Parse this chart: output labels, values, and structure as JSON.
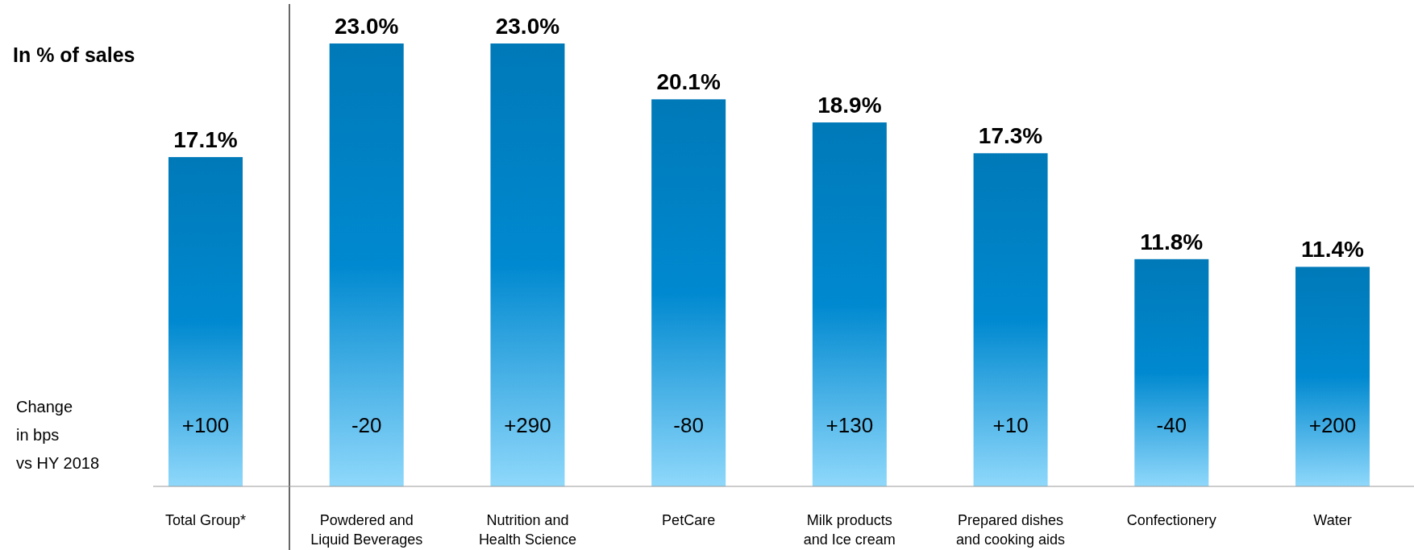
{
  "chart_data": {
    "type": "bar",
    "title": "In % of sales",
    "categories": [
      "Total Group*",
      "Powdered and Liquid Beverages",
      "Nutrition and Health Science",
      "PetCare",
      "Milk products and Ice cream",
      "Prepared dishes and cooking aids",
      "Confectionery",
      "Water"
    ],
    "values": [
      17.1,
      23.0,
      23.0,
      20.1,
      18.9,
      17.3,
      11.8,
      11.4
    ],
    "value_labels": [
      "17.1%",
      "23.0%",
      "23.0%",
      "20.1%",
      "18.9%",
      "17.3%",
      "11.8%",
      "11.4%"
    ],
    "color": "#0079b8",
    "annotations": [
      "Change in bps vs HY 2018",
      "+100",
      "-20",
      "+290",
      "-80",
      "+130",
      "+10",
      "-40",
      "+200"
    ]
  }
}
